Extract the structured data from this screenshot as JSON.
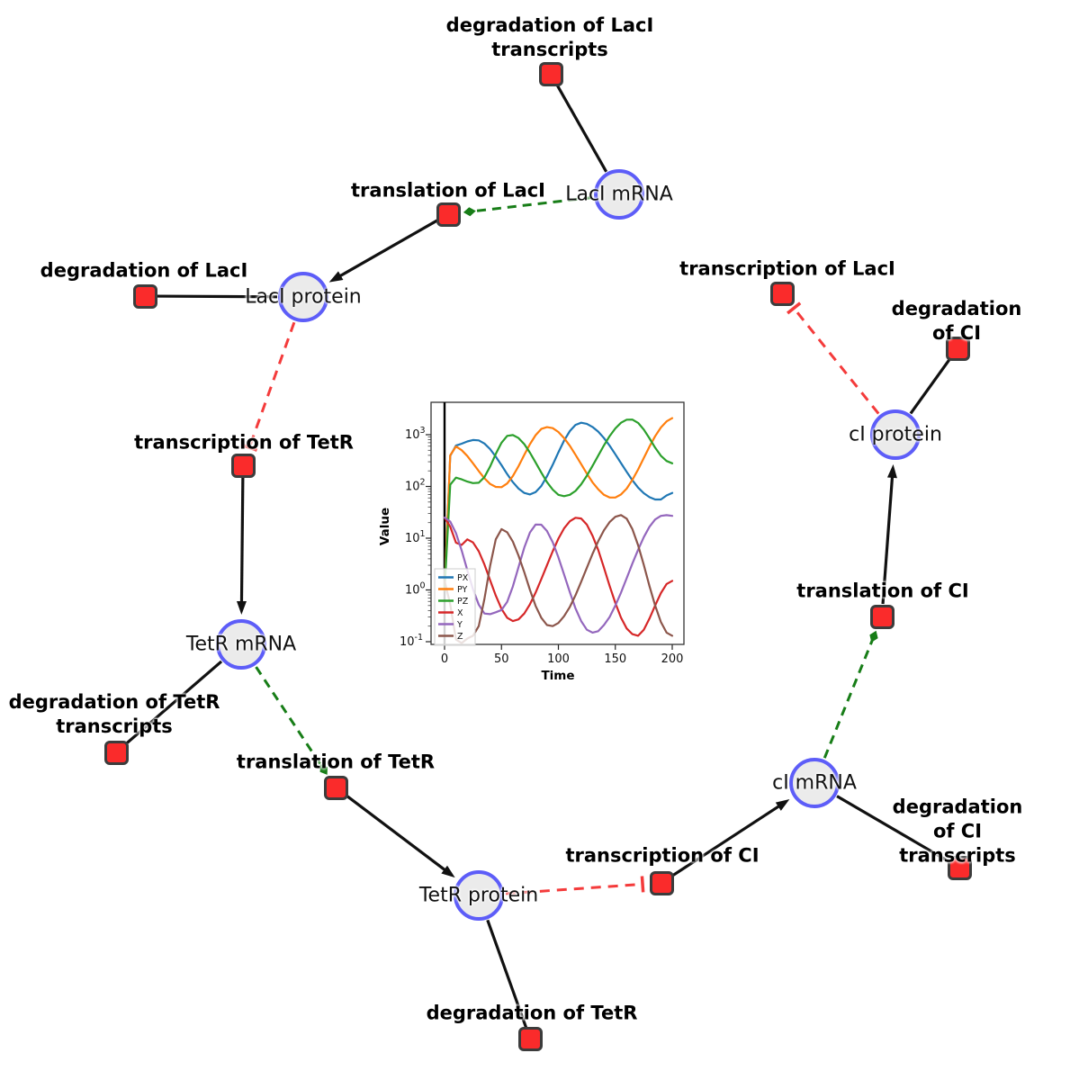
{
  "diagram": {
    "species": [
      {
        "id": "laci_mrna",
        "label": "LacI mRNA"
      },
      {
        "id": "laci_protein",
        "label": "LacI protein"
      },
      {
        "id": "tetr_mrna",
        "label": "TetR mRNA"
      },
      {
        "id": "tetr_protein",
        "label": "TetR protein"
      },
      {
        "id": "ci_mrna",
        "label": "cI mRNA"
      },
      {
        "id": "ci_protein",
        "label": "cI protein"
      }
    ],
    "reactions": [
      {
        "id": "deg_laci_tx",
        "label": "degradation of LacI\ntranscripts"
      },
      {
        "id": "transl_laci",
        "label": "translation of LacI"
      },
      {
        "id": "deg_laci",
        "label": "degradation of LacI"
      },
      {
        "id": "txn_tetr",
        "label": "transcription of TetR"
      },
      {
        "id": "deg_tetr_tx",
        "label": "degradation of TetR\ntranscripts"
      },
      {
        "id": "transl_tetr",
        "label": "translation of TetR"
      },
      {
        "id": "deg_tetr",
        "label": "degradation of TetR"
      },
      {
        "id": "txn_ci",
        "label": "transcription of CI"
      },
      {
        "id": "deg_ci_tx",
        "label": "degradation of CI\ntranscripts"
      },
      {
        "id": "transl_ci",
        "label": "translation of CI"
      },
      {
        "id": "deg_ci",
        "label": "degradation of CI"
      },
      {
        "id": "txn_laci",
        "label": "transcription of LacI"
      }
    ],
    "edges": [
      {
        "source": "laci_mrna",
        "target": "deg_laci_tx",
        "type": "line"
      },
      {
        "source": "laci_mrna",
        "target": "transl_laci",
        "type": "activation"
      },
      {
        "source": "transl_laci",
        "target": "laci_protein",
        "type": "arrow"
      },
      {
        "source": "laci_protein",
        "target": "deg_laci",
        "type": "line"
      },
      {
        "source": "laci_protein",
        "target": "txn_tetr",
        "type": "inhibition"
      },
      {
        "source": "txn_tetr",
        "target": "tetr_mrna",
        "type": "arrow"
      },
      {
        "source": "tetr_mrna",
        "target": "deg_tetr_tx",
        "type": "line"
      },
      {
        "source": "tetr_mrna",
        "target": "transl_tetr",
        "type": "activation"
      },
      {
        "source": "transl_tetr",
        "target": "tetr_protein",
        "type": "arrow"
      },
      {
        "source": "tetr_protein",
        "target": "deg_tetr",
        "type": "line"
      },
      {
        "source": "tetr_protein",
        "target": "txn_ci",
        "type": "inhibition"
      },
      {
        "source": "txn_ci",
        "target": "ci_mrna",
        "type": "arrow"
      },
      {
        "source": "ci_mrna",
        "target": "deg_ci_tx",
        "type": "line"
      },
      {
        "source": "ci_mrna",
        "target": "transl_ci",
        "type": "activation"
      },
      {
        "source": "transl_ci",
        "target": "ci_protein",
        "type": "arrow"
      },
      {
        "source": "ci_protein",
        "target": "deg_ci",
        "type": "line"
      },
      {
        "source": "ci_protein",
        "target": "txn_laci",
        "type": "inhibition"
      }
    ],
    "colors": {
      "circle_fill": "#ebebeb",
      "circle_border": "#5d5df8",
      "square_fill": "#fa2b2b",
      "square_border": "#3c3c3c",
      "edge_black": "#111111",
      "activation_green": "#177d17",
      "inhibition_red": "#f43b3b"
    }
  },
  "chart_data": {
    "type": "line",
    "title": "",
    "xlabel": "Time",
    "ylabel": "Value",
    "x_ticks": [
      0,
      50,
      100,
      150,
      200
    ],
    "xlim": [
      -10,
      210
    ],
    "y_scale": "log",
    "y_tick_exponents": [
      3,
      2,
      1,
      0,
      -1
    ],
    "ylim": [
      0.1,
      2500
    ],
    "vline_x": 0,
    "legend_loc": "lower left",
    "t": [
      0,
      5,
      10,
      15,
      20,
      25,
      30,
      35,
      40,
      45,
      50,
      55,
      60,
      65,
      70,
      75,
      80,
      85,
      90,
      95,
      100,
      105,
      110,
      115,
      120,
      125,
      130,
      135,
      140,
      145,
      150,
      155,
      160,
      165,
      170,
      175,
      180,
      185,
      190,
      195,
      200
    ],
    "series": [
      {
        "name": "PX",
        "color": "#1f77b4",
        "values": [
          1,
          390,
          617,
          671,
          741,
          790,
          777,
          676,
          527,
          377,
          257,
          173,
          121,
          91,
          75,
          70,
          78,
          102,
          157,
          263,
          457,
          767,
          1175,
          1549,
          1700,
          1622,
          1413,
          1148,
          861,
          617,
          417,
          282,
          191,
          132,
          95,
          74,
          62,
          56,
          56,
          67,
          75
        ]
      },
      {
        "name": "PY",
        "color": "#ff7f0e",
        "values": [
          1,
          400,
          591,
          503,
          387,
          280,
          198,
          144,
          112,
          98,
          97,
          114,
          159,
          246,
          407,
          658,
          980,
          1290,
          1400,
          1340,
          1128,
          864,
          612,
          409,
          270,
          177,
          120,
          88,
          69,
          61,
          61,
          70,
          91,
          134,
          213,
          355,
          590,
          934,
          1380,
          1810,
          2090
        ]
      },
      {
        "name": "PZ",
        "color": "#2ca02c",
        "values": [
          1,
          108,
          148,
          137,
          124,
          116,
          118,
          151,
          242,
          425,
          700,
          950,
          985,
          863,
          657,
          449,
          290,
          185,
          121,
          87,
          69,
          65,
          69,
          82,
          110,
          161,
          249,
          395,
          621,
          937,
          1322,
          1704,
          1952,
          1963,
          1693,
          1254,
          851,
          561,
          391,
          310,
          280
        ]
      },
      {
        "name": "X",
        "color": "#d62728",
        "values": [
          25,
          16.7,
          8.2,
          7.4,
          9.5,
          8.3,
          5.6,
          3.1,
          1.55,
          0.78,
          0.43,
          0.29,
          0.25,
          0.27,
          0.35,
          0.53,
          0.89,
          1.62,
          3.0,
          5.6,
          9.8,
          15.5,
          21.2,
          24.8,
          24.0,
          18.3,
          11.2,
          5.9,
          2.7,
          1.2,
          0.56,
          0.29,
          0.18,
          0.14,
          0.13,
          0.17,
          0.28,
          0.5,
          0.87,
          1.3,
          1.5
        ]
      },
      {
        "name": "Y",
        "color": "#9467bd",
        "values": [
          25,
          21,
          12.5,
          5.8,
          2.4,
          1.03,
          0.52,
          0.35,
          0.34,
          0.37,
          0.41,
          0.59,
          1.17,
          2.76,
          6.6,
          12.9,
          18.4,
          18.2,
          13.8,
          8.35,
          4.27,
          1.99,
          0.91,
          0.44,
          0.25,
          0.17,
          0.15,
          0.16,
          0.21,
          0.3,
          0.5,
          0.89,
          1.69,
          3.23,
          6.0,
          10.5,
          16.6,
          23,
          27,
          27.9,
          27
        ]
      },
      {
        "name": "Z",
        "color": "#8c564b",
        "values": [
          1.5,
          0.53,
          0.11,
          0.094,
          0.115,
          0.13,
          0.2,
          0.67,
          2.9,
          9.5,
          15,
          13,
          8.6,
          4.6,
          2.2,
          1.0,
          0.49,
          0.29,
          0.21,
          0.2,
          0.23,
          0.31,
          0.47,
          0.79,
          1.44,
          2.68,
          4.97,
          8.75,
          14.2,
          20.5,
          25.9,
          28,
          23.8,
          15,
          7.3,
          3.05,
          1.19,
          0.5,
          0.24,
          0.15,
          0.13
        ]
      }
    ]
  }
}
